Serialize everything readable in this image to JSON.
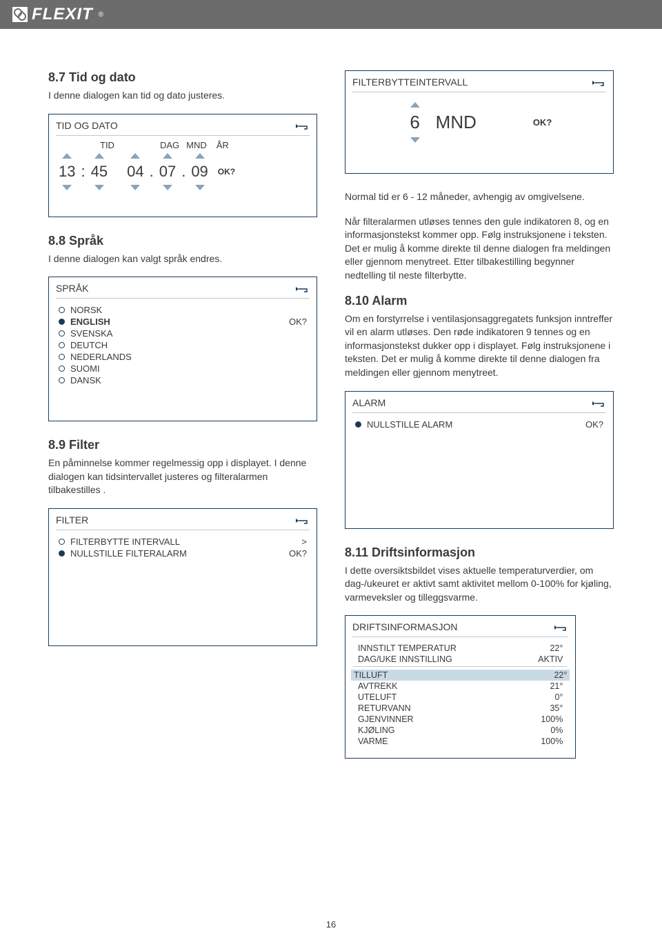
{
  "brand": "FLEXIT",
  "page_number": "16",
  "colors": {
    "border": "#1a3a5a",
    "triangle": "#8aa3b8",
    "highlight_bg": "#c9dae7"
  },
  "left": {
    "s87": {
      "heading": "8.7  Tid og dato",
      "body": "I denne dialogen kan tid og dato justeres.",
      "panel": {
        "title": "TID OG DATO",
        "col_labels": [
          "TID",
          "DAG",
          "MND",
          "ÅR"
        ],
        "hour": "13",
        "minute": "45",
        "day": "04",
        "month": "07",
        "year": "09",
        "ok": "OK?"
      }
    },
    "s88": {
      "heading": "8.8  Språk",
      "body": "I denne dialogen kan valgt språk endres.",
      "panel": {
        "title": "SPRÅK",
        "options": [
          {
            "label": "NORSK",
            "selected": false
          },
          {
            "label": "ENGLISH",
            "selected": true,
            "right": "OK?"
          },
          {
            "label": "SVENSKA",
            "selected": false
          },
          {
            "label": "DEUTCH",
            "selected": false
          },
          {
            "label": "NEDERLANDS",
            "selected": false
          },
          {
            "label": "SUOMI",
            "selected": false
          },
          {
            "label": "DANSK",
            "selected": false
          }
        ]
      }
    },
    "s89": {
      "heading": "8.9  Filter",
      "body": "En påminnelse kommer regelmessig opp i displayet. I denne dialogen kan tidsintervallet justeres og filteralarmen tilbakestilles .",
      "panel": {
        "title": "FILTER",
        "rows": [
          {
            "label": "FILTERBYTTE INTERVALL",
            "selected": false,
            "right": ">"
          },
          {
            "label": "NULLSTILLE FILTERALARM",
            "selected": true,
            "right": "OK?"
          }
        ]
      }
    }
  },
  "right": {
    "fb_panel": {
      "title": "FILTERBYTTEINTERVALL",
      "value": "6",
      "unit": "MND",
      "ok": "OK?"
    },
    "para1": "Normal tid er 6 - 12 måneder, avhengig av omgivelsene.",
    "para2": "Når filteralarmen utløses tennes den gule indikatoren 8, og en informasjonstekst kommer opp. Følg instruksjonene i teksten. Det er  mulig å komme direkte til denne dialogen fra meldingen eller gjennom menytreet. Etter tilbakestilling begynner nedtelling til neste filterbytte.",
    "s810": {
      "heading": "8.10 Alarm",
      "body": "Om en forstyrrelse i ventilasjonsaggregatets funksjon inntreffer vil en alarm utløses. Den røde indikatoren 9 tennes og en informasjonstekst dukker opp i displayet. Følg instruksjonene i teksten. Det er mulig å komme direkte til denne dialogen fra meldingen eller gjennom menytreet.",
      "panel": {
        "title": "ALARM",
        "rows": [
          {
            "label": "NULLSTILLE ALARM",
            "selected": true,
            "right": "OK?"
          }
        ]
      }
    },
    "s811": {
      "heading": "8.11 Driftsinformasjon",
      "body": "I dette oversiktsbildet vises aktuelle temperaturverdier, om dag-/ukeuret er aktivt samt aktivitet mellom 0-100% for kjøling, varmeveksler og tilleggsvarme.",
      "panel": {
        "title": "DRIFTSINFORMASJON",
        "rows": [
          {
            "label": "INNSTILT TEMPERATUR",
            "value": "22°"
          },
          {
            "label": "DAG/UKE INNSTILLING",
            "value": "AKTIV"
          },
          {
            "label": "TILLUFT",
            "value": "22°",
            "highlight": true
          },
          {
            "label": "AVTREKK",
            "value": "21°"
          },
          {
            "label": "UTELUFT",
            "value": "0°"
          },
          {
            "label": "RETURVANN",
            "value": "35°"
          },
          {
            "label": "GJENVINNER",
            "value": "100%"
          },
          {
            "label": "KJØLING",
            "value": "0%"
          },
          {
            "label": "VARME",
            "value": "100%"
          }
        ]
      }
    }
  }
}
